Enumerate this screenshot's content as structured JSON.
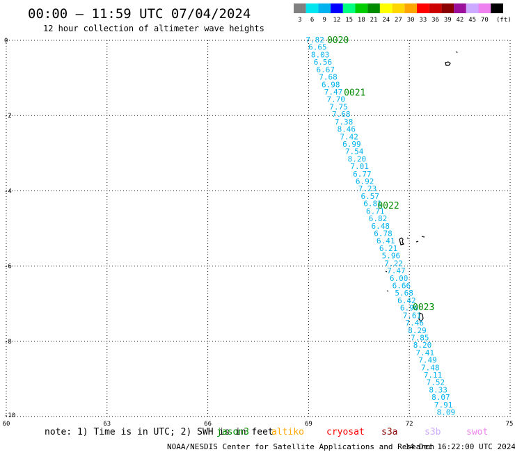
{
  "header": {
    "title": "00:00 – 11:59 UTC 07/04/2024",
    "subtitle": "12 hour collection of altimeter wave heights"
  },
  "color_scale": {
    "unit": "(ft)",
    "stops": [
      {
        "label": "3",
        "color": "#808080"
      },
      {
        "label": "6",
        "color": "#00e5ee"
      },
      {
        "label": "9",
        "color": "#00b2ee"
      },
      {
        "label": "12",
        "color": "#0000ff"
      },
      {
        "label": "15",
        "color": "#00ff7f"
      },
      {
        "label": "18",
        "color": "#00cd00"
      },
      {
        "label": "21",
        "color": "#008b00"
      },
      {
        "label": "24",
        "color": "#ffff00"
      },
      {
        "label": "27",
        "color": "#ffd700"
      },
      {
        "label": "30",
        "color": "#ffa500"
      },
      {
        "label": "33",
        "color": "#ff0000"
      },
      {
        "label": "36",
        "color": "#cd0000"
      },
      {
        "label": "39",
        "color": "#8b0000"
      },
      {
        "label": "42",
        "color": "#9b0f9b"
      },
      {
        "label": "45",
        "color": "#ccaaff"
      },
      {
        "label": "70",
        "color": "#ee82ee"
      },
      {
        "label": "",
        "color": "#000000"
      }
    ]
  },
  "axes": {
    "lat_labels": [
      "0",
      "-2",
      "-4",
      "-6",
      "-8",
      "-10"
    ],
    "lat_values": [
      0,
      -2,
      -4,
      -6,
      -8,
      -10
    ],
    "lon_labels": [
      "60",
      "63",
      "66",
      "69",
      "72",
      "75"
    ],
    "lon_values": [
      60,
      63,
      66,
      69,
      72,
      75
    ],
    "lat_range": [
      -10,
      0
    ],
    "lon_range": [
      60,
      75
    ]
  },
  "track": {
    "color": "#00b2ee",
    "heights": [
      "7.82",
      "6.65",
      "8.03",
      "6.56",
      "6.67",
      "7.68",
      "6.98",
      "7.47",
      "7.70",
      "7.75",
      "7.68",
      "7.38",
      "8.46",
      "7.42",
      "6.99",
      "7.54",
      "8.20",
      "7.01",
      "6.77",
      "6.92",
      "7.23",
      "6.57",
      "6.81",
      "6.71",
      "6.82",
      "6.48",
      "6.78",
      "6.41",
      "6.21",
      "5.96",
      "7.22",
      "7.47",
      "6.00",
      "6.66",
      "5.68",
      "6.42",
      "6.96",
      "7.61",
      "7.46",
      "8.29",
      "7.85",
      "8.20",
      "7.41",
      "7.49",
      "7.48",
      "7.11",
      "7.52",
      "8.33",
      "8.07",
      "7.91",
      "8.09"
    ],
    "lat_start": 0.0,
    "lat_end": -9.9,
    "lon_start": 69.0,
    "lon_end": 72.9
  },
  "time_labels": [
    {
      "text": "0020",
      "lat": 0.0,
      "lon": 69.55
    },
    {
      "text": "0021",
      "lat": -1.4,
      "lon": 70.05
    },
    {
      "text": "0022",
      "lat": -4.4,
      "lon": 71.05
    },
    {
      "text": "0023",
      "lat": -7.1,
      "lon": 72.1
    }
  ],
  "time_label_color": "#008b00",
  "footer": {
    "note": "note: 1) Time is in UTC; 2) SWH is in feet",
    "satellites": [
      {
        "name": "jason3",
        "color": "#008b00"
      },
      {
        "name": "altiko",
        "color": "#ffa500"
      },
      {
        "name": "cryosat",
        "color": "#ff0000"
      },
      {
        "name": "s3a",
        "color": "#8b0000"
      },
      {
        "name": "s3b",
        "color": "#ccaaff"
      },
      {
        "name": "swot",
        "color": "#ee82ee"
      }
    ],
    "credit": "NOAA/NESDIS Center for Satellite Applications and Research",
    "timestamp": "14 Dec 16:22:00 UTC 2024"
  }
}
